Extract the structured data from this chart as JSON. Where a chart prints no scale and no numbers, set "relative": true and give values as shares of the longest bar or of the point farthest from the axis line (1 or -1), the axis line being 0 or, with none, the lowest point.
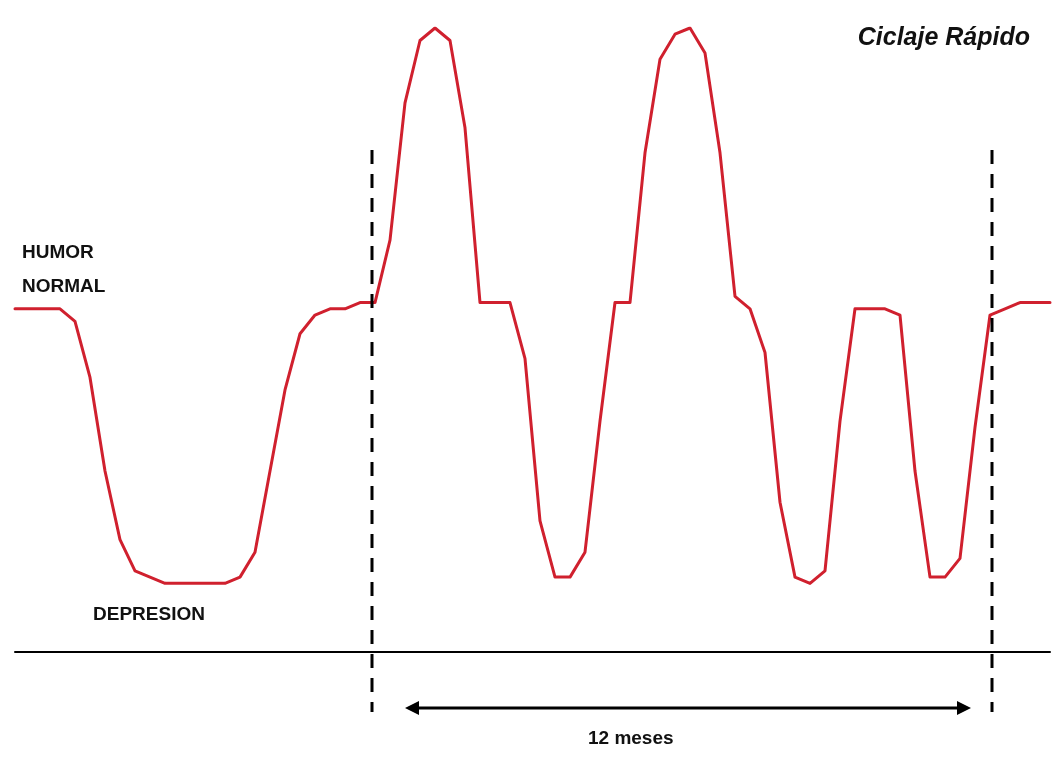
{
  "chart_data": {
    "type": "line",
    "title": "Ciclaje Rápido",
    "relative": true,
    "marker": "none",
    "line_style": "solid",
    "categories": [
      null,
      null,
      null,
      null,
      null,
      null,
      null,
      null,
      null,
      null,
      null,
      null,
      null,
      null,
      null,
      null,
      null,
      null,
      null,
      null,
      null,
      null,
      null,
      null,
      null,
      null,
      null,
      null,
      null,
      null,
      null,
      null,
      null,
      null,
      null,
      null,
      null,
      null,
      null,
      null,
      null,
      null,
      null,
      null,
      null,
      null,
      null,
      null,
      null,
      null,
      null,
      null,
      null,
      null,
      null,
      null,
      null,
      null,
      null,
      null,
      null,
      null,
      null,
      null,
      null,
      null,
      null,
      null,
      null,
      null
    ],
    "series": [
      {
        "color": "#d0202e",
        "values": [
          0.55,
          0.55,
          0.55,
          0.55,
          0.53,
          0.44,
          0.29,
          0.18,
          0.13,
          0.12,
          0.11,
          0.11,
          0.11,
          0.11,
          0.11,
          0.12,
          0.16,
          0.29,
          0.42,
          0.51,
          0.54,
          0.55,
          0.55,
          0.56,
          0.56,
          0.66,
          0.88,
          0.98,
          1,
          0.98,
          0.84,
          0.56,
          0.56,
          0.56,
          0.47,
          0.21,
          0.12,
          0.12,
          0.16,
          0.37,
          0.56,
          0.56,
          0.8,
          0.95,
          0.99,
          1,
          0.96,
          0.8,
          0.57,
          0.55,
          0.48,
          0.24,
          0.12,
          0.11,
          0.13,
          0.37,
          0.55,
          0.55,
          0.55,
          0.54,
          0.29,
          0.12,
          0.12,
          0.15,
          0.36,
          0.54,
          0.55,
          0.56,
          0.56,
          0.56
        ]
      }
    ],
    "annotations": [
      "HUMOR NORMAL",
      "DEPRESION",
      "12 meses"
    ]
  }
}
